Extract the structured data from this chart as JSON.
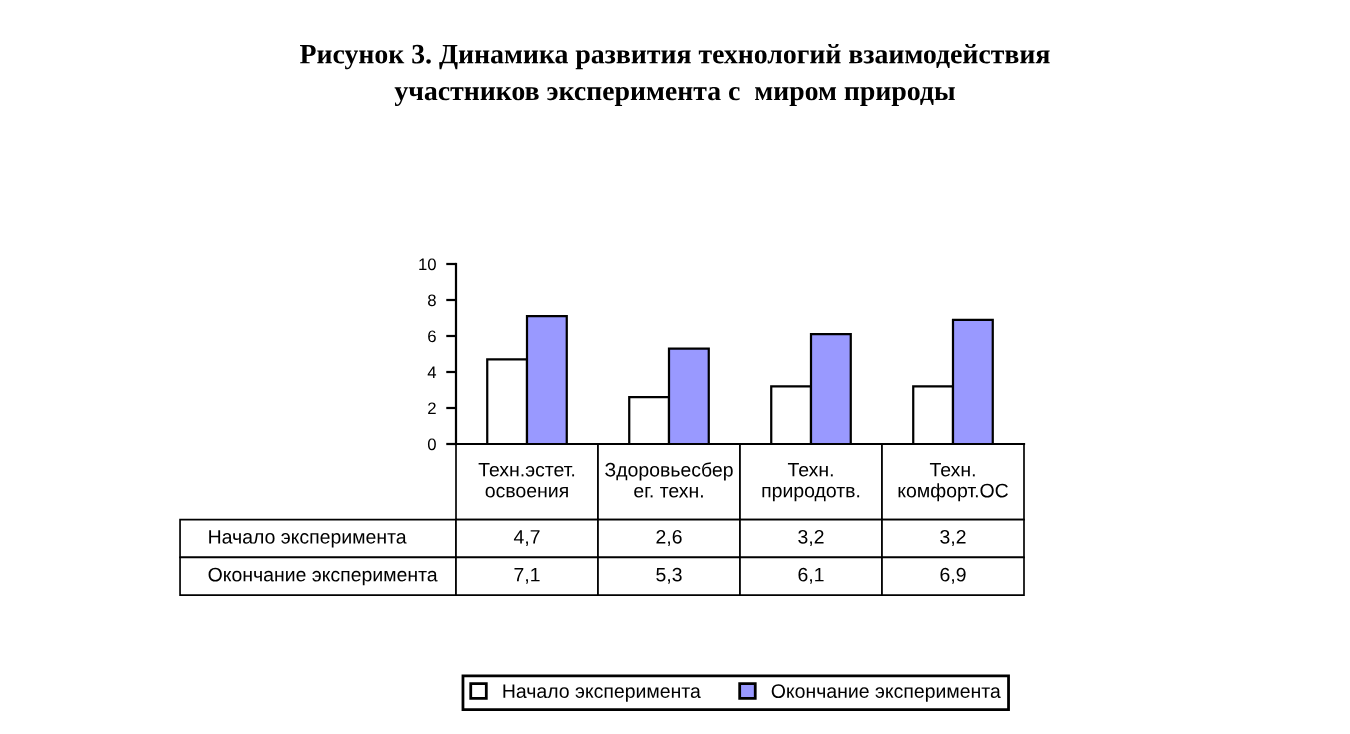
{
  "chart_data": {
    "type": "bar",
    "title": "Рисунок 3. Динамика развития технологий взаимодействия\nучастников эксперимента с  миром природы",
    "categories": [
      "Техн.эстет.\nосвоения",
      "Здоровьесбер\nег. техн.",
      "Техн.\nприродотв.",
      "Техн.\nкомфорт.ОС"
    ],
    "series": [
      {
        "name": "Начало эксперимента",
        "color": "#ffffff",
        "values": [
          4.7,
          2.6,
          3.2,
          3.2
        ],
        "value_labels": [
          "4,7",
          "2,6",
          "3,2",
          "3,2"
        ]
      },
      {
        "name": "Окончание эксперимента",
        "color": "#9999ff",
        "values": [
          7.1,
          5.3,
          6.1,
          6.9
        ],
        "value_labels": [
          "7,1",
          "5,3",
          "6,1",
          "6,9"
        ]
      }
    ],
    "ylim": [
      0,
      10
    ],
    "yticks": [
      0,
      2,
      4,
      6,
      8,
      10
    ],
    "grid": false,
    "legend": "bottom"
  }
}
